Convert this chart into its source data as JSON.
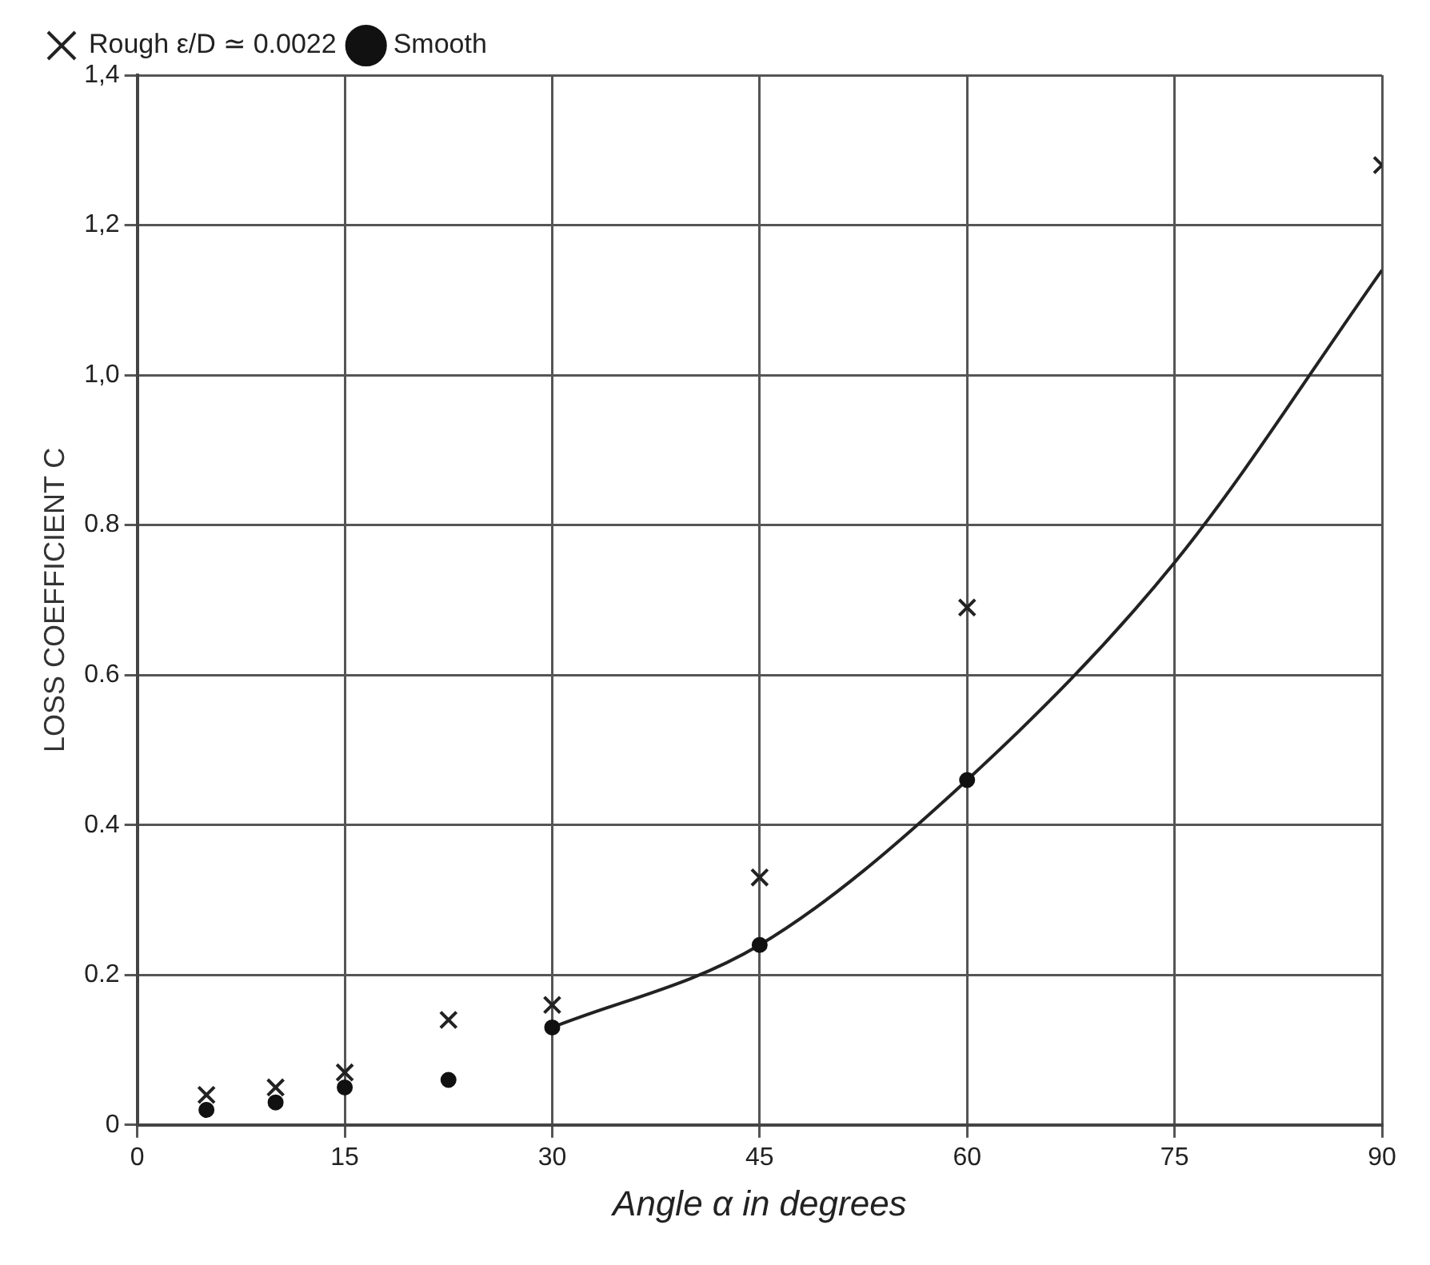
{
  "chart_data": {
    "type": "scatter",
    "xlabel": "Angle α in degrees",
    "ylabel": "LOSS COEFFICIENT C",
    "xlim": [
      0,
      90
    ],
    "xticks": [
      0,
      15,
      30,
      45,
      60,
      75,
      90
    ],
    "ylim": [
      0,
      1.4
    ],
    "yticks": [
      0,
      0.2,
      0.4,
      0.6,
      0.8,
      {
        "value": 1.0,
        "label": "1,0"
      },
      {
        "value": 1.2,
        "label": "1,2"
      },
      {
        "value": 1.4,
        "label": "1,4"
      }
    ],
    "grid": true,
    "legend": "top left",
    "series": [
      {
        "name": "Rough ε/D ≃ 0.0022",
        "color": "#222222",
        "marker": "cross",
        "x": [
          5,
          10,
          15,
          22.5,
          30,
          45,
          60,
          90
        ],
        "values": [
          0.04,
          0.05,
          0.07,
          0.14,
          0.16,
          0.33,
          0.69,
          1.28
        ]
      },
      {
        "name": "Smooth",
        "color": "#111111",
        "marker": "circle",
        "x": [
          5,
          10,
          15,
          22.5,
          30,
          45,
          60
        ],
        "values": [
          0.02,
          0.03,
          0.05,
          0.06,
          0.13,
          0.24,
          0.46
        ]
      },
      {
        "type": "line",
        "color": "#222222",
        "marker": "none",
        "x": [
          30,
          45,
          60,
          75,
          90
        ],
        "values": [
          0.13,
          0.24,
          0.46,
          0.75,
          1.14
        ]
      }
    ]
  }
}
